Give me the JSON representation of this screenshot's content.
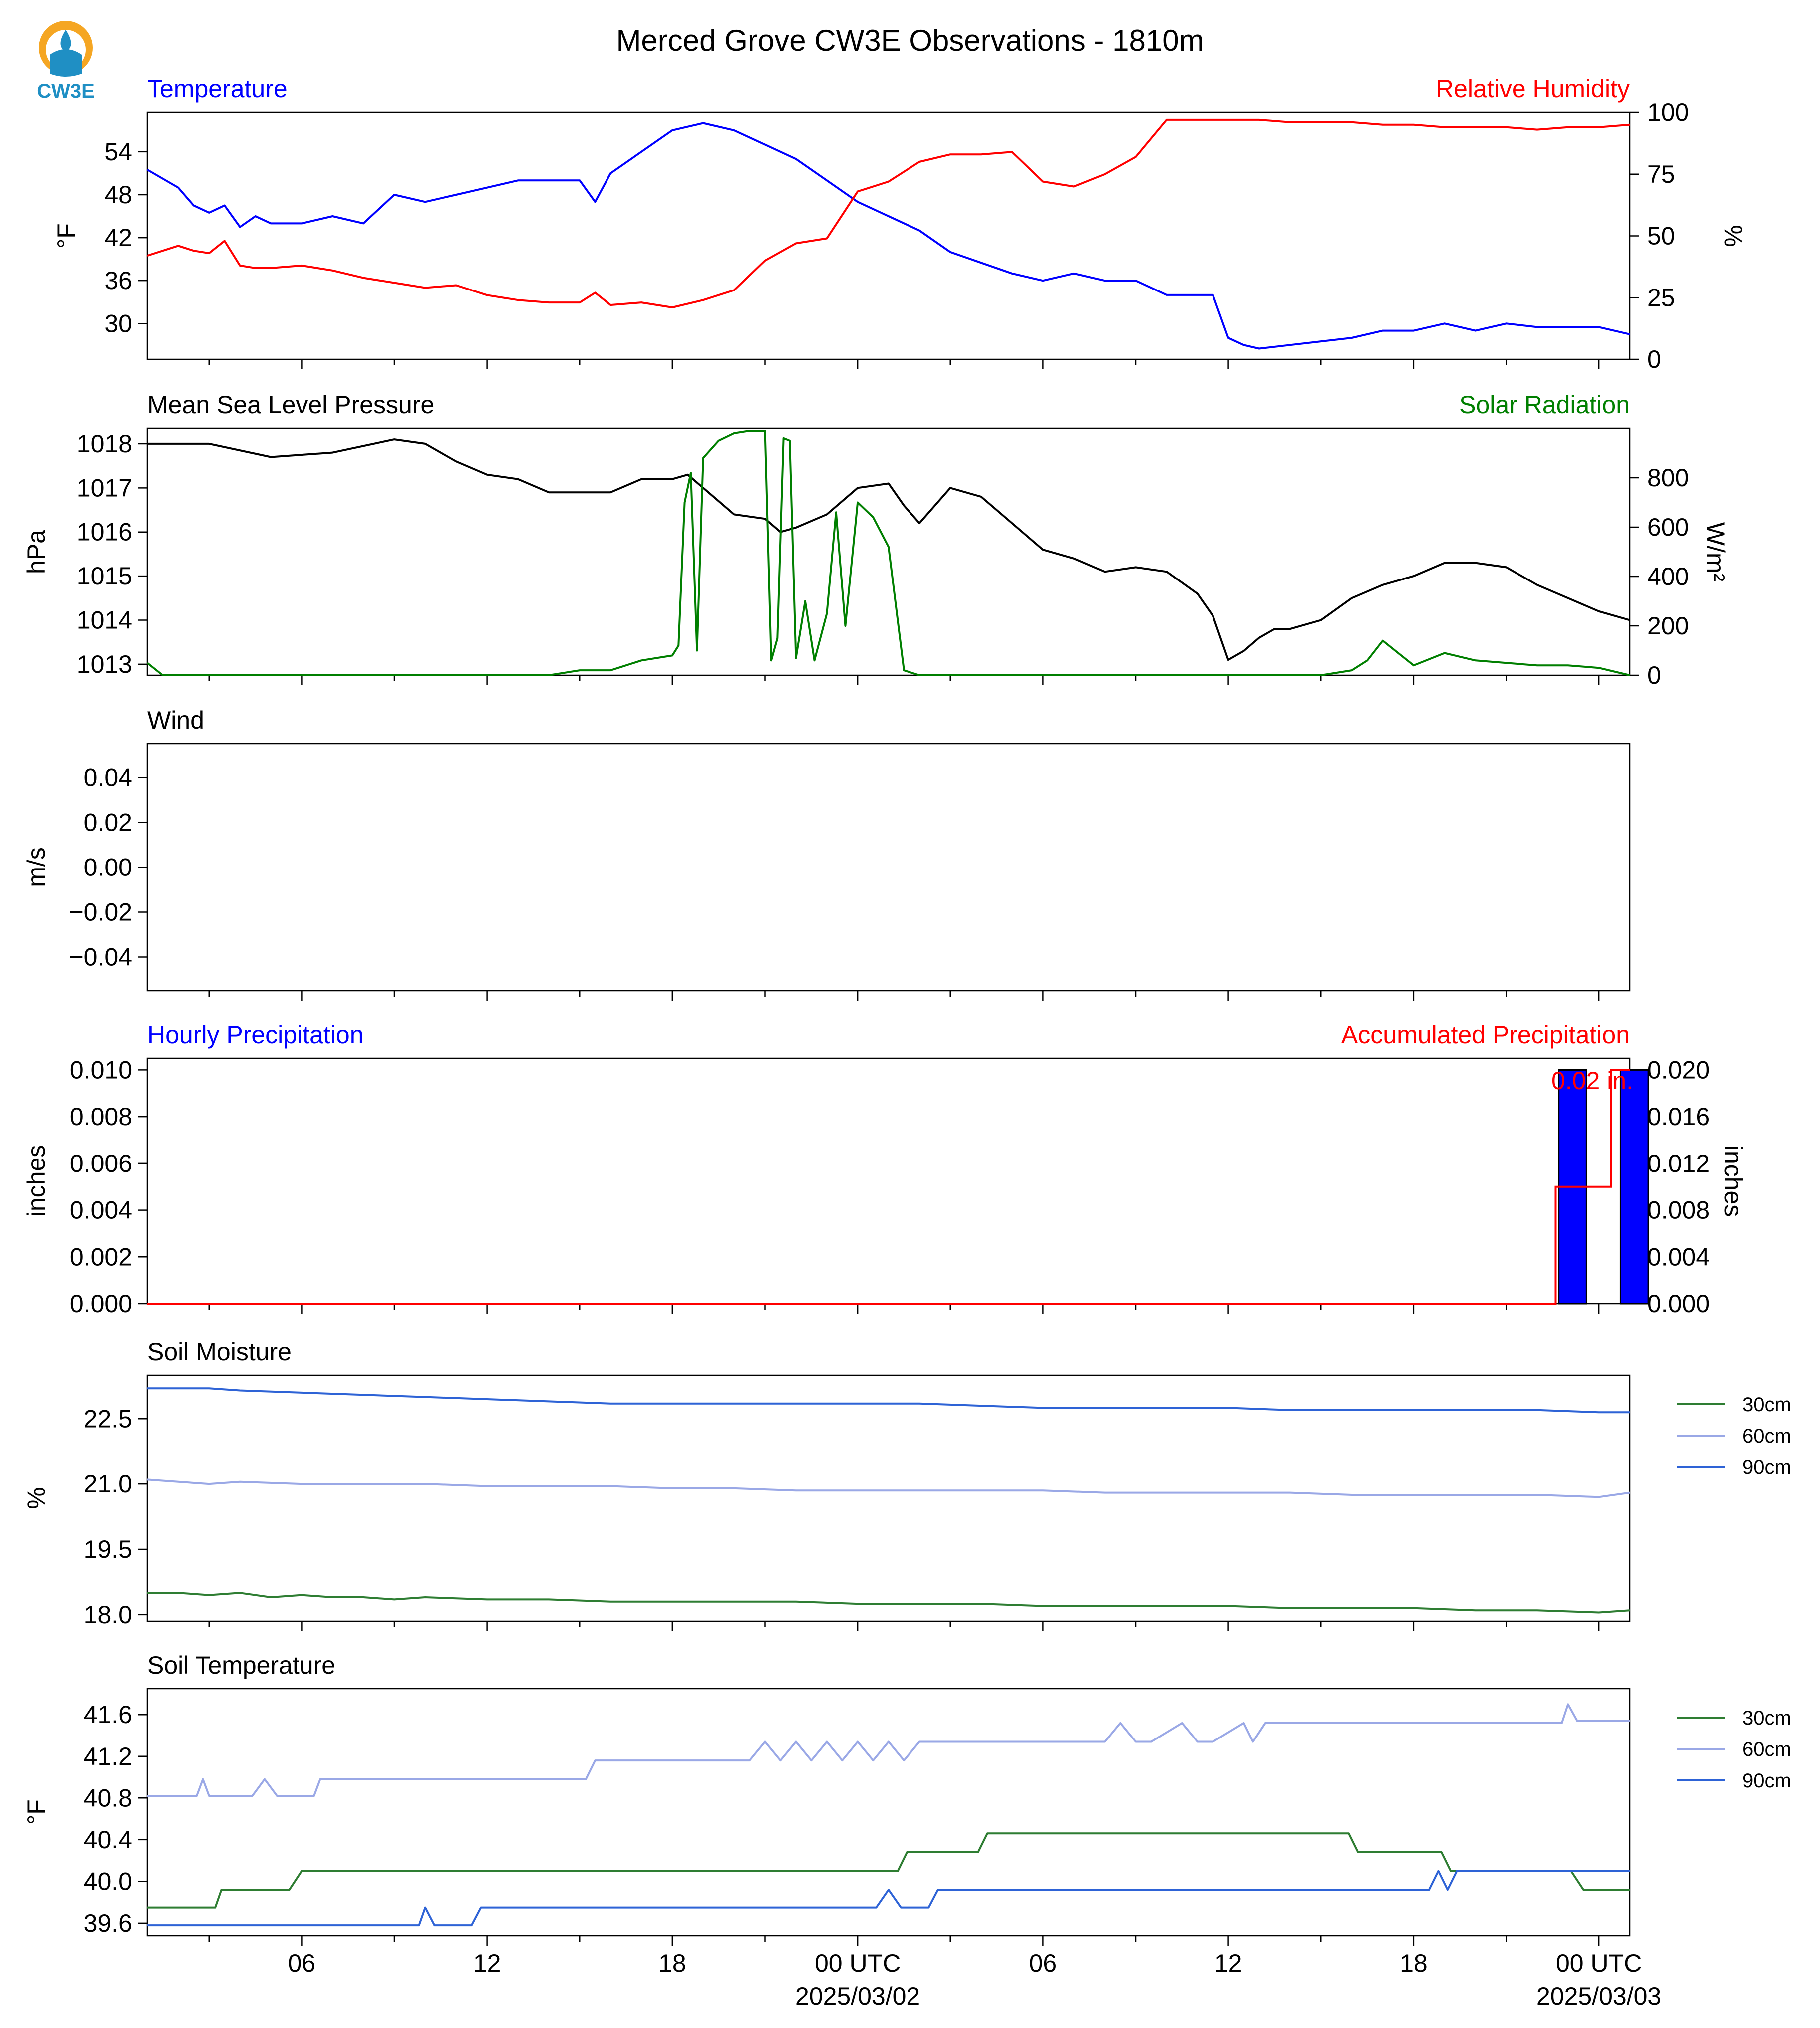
{
  "title": "Merced Grove CW3E Observations - 1810m",
  "logo": {
    "text": "CW3E",
    "colors": {
      "sun": "#f5a623",
      "water": "#1f8fc4"
    }
  },
  "x_axis": {
    "ticks": [
      "06",
      "12",
      "18",
      "00 UTC",
      "06",
      "12",
      "18",
      "00 UTC"
    ],
    "tick_hours": [
      6,
      12,
      18,
      24,
      30,
      36,
      42,
      48
    ],
    "dates": [
      "2025/03/02",
      "2025/03/03"
    ],
    "range_hours": [
      1,
      49
    ]
  },
  "chart_data": [
    {
      "type": "line",
      "title_left": "Temperature",
      "title_right": "Relative Humidity",
      "ylabel": "°F",
      "ylabel_right": "%",
      "yticks": [
        30,
        36,
        42,
        48,
        54
      ],
      "yticks_right": [
        0,
        25,
        50,
        75,
        100
      ],
      "ylim": [
        25,
        59.5
      ],
      "ylim_right": [
        0,
        100
      ],
      "colors": {
        "temperature": "#0000ff",
        "humidity": "#ff0000"
      },
      "series": [
        {
          "axis": "left",
          "color": "#0000ff",
          "x": [
            1,
            2,
            2.5,
            3,
            3.5,
            4,
            4.5,
            5,
            6,
            7,
            8,
            9,
            10,
            11,
            12,
            13,
            14,
            15,
            15.5,
            16,
            17,
            18,
            19,
            20,
            21,
            22,
            23,
            24,
            25,
            26,
            27,
            28,
            29,
            30,
            31,
            32,
            33,
            34,
            35,
            35.5,
            36,
            36.5,
            37,
            38,
            39,
            40,
            41,
            42,
            43,
            44,
            45,
            46,
            47,
            48,
            49
          ],
          "y": [
            51.5,
            49,
            46.5,
            45.5,
            46.5,
            43.5,
            45,
            44,
            44,
            45,
            44,
            48,
            47,
            48,
            49,
            50,
            50,
            50,
            47,
            51,
            54,
            57,
            58,
            57,
            55,
            53,
            50,
            47,
            45,
            43,
            40,
            38.5,
            37,
            36,
            37,
            36,
            36,
            34,
            34,
            34,
            28,
            27,
            26.5,
            27,
            27.5,
            28,
            29,
            29,
            30,
            29,
            30,
            29.5,
            29.5,
            29.5,
            28.5
          ]
        },
        {
          "axis": "right",
          "color": "#ff0000",
          "x": [
            1,
            2,
            2.5,
            3,
            3.5,
            4,
            4.5,
            5,
            6,
            7,
            8,
            9,
            10,
            11,
            12,
            13,
            14,
            15,
            15.5,
            16,
            17,
            18,
            19,
            20,
            21,
            22,
            23,
            24,
            25,
            26,
            27,
            28,
            29,
            30,
            31,
            32,
            33,
            34,
            35,
            36,
            37,
            38,
            39,
            40,
            41,
            42,
            43,
            44,
            45,
            46,
            47,
            48,
            49
          ],
          "y": [
            42,
            46,
            44,
            43,
            48,
            38,
            37,
            37,
            38,
            36,
            33,
            31,
            29,
            30,
            26,
            24,
            23,
            23,
            27,
            22,
            23,
            21,
            24,
            28,
            40,
            47,
            49,
            68,
            72,
            80,
            83,
            83,
            84,
            72,
            70,
            75,
            82,
            97,
            97,
            97,
            97,
            96,
            96,
            96,
            95,
            95,
            94,
            94,
            94,
            93,
            94,
            94,
            95
          ]
        }
      ]
    },
    {
      "type": "line",
      "title_left": "Mean Sea Level Pressure",
      "title_right": "Solar Radiation",
      "ylabel": "hPa",
      "ylabel_right": "W/m²",
      "yticks": [
        1013,
        1014,
        1015,
        1016,
        1017,
        1018
      ],
      "yticks_right": [
        0,
        200,
        400,
        600,
        800
      ],
      "ylim": [
        1012.75,
        1018.35
      ],
      "ylim_right": [
        0,
        1000
      ],
      "colors": {
        "pressure": "#000000",
        "solar": "#007f00"
      },
      "series": [
        {
          "axis": "left",
          "color": "#000000",
          "x": [
            1,
            3,
            5,
            7,
            9,
            10,
            11,
            12,
            13,
            14,
            15,
            16,
            17,
            18,
            18.5,
            19,
            19.5,
            20,
            21,
            21.5,
            22,
            23,
            24,
            25,
            25.5,
            26,
            27,
            28,
            29,
            30,
            31,
            32,
            33,
            34,
            35,
            35.5,
            36,
            36.5,
            37,
            37.5,
            38,
            39,
            40,
            41,
            42,
            43,
            44,
            45,
            46,
            47,
            48,
            49
          ],
          "y": [
            1018,
            1018,
            1017.7,
            1017.8,
            1018.1,
            1018,
            1017.6,
            1017.3,
            1017.2,
            1016.9,
            1016.9,
            1016.9,
            1017.2,
            1017.2,
            1017.3,
            1017,
            1016.7,
            1016.4,
            1016.3,
            1016,
            1016.1,
            1016.4,
            1017,
            1017.1,
            1016.6,
            1016.2,
            1017,
            1016.8,
            1016.2,
            1015.6,
            1015.4,
            1015.1,
            1015.2,
            1015.1,
            1014.6,
            1014.1,
            1013.1,
            1013.3,
            1013.6,
            1013.8,
            1013.8,
            1014.0,
            1014.5,
            1014.8,
            1015.0,
            1015.3,
            1015.3,
            1015.2,
            1014.8,
            1014.5,
            1014.2,
            1014.0
          ]
        },
        {
          "axis": "right",
          "color": "#007f00",
          "x": [
            1,
            1.5,
            2,
            14,
            15,
            16,
            17,
            18,
            18.2,
            18.4,
            18.6,
            18.8,
            19,
            19.5,
            20,
            20.5,
            21,
            21.2,
            21.4,
            21.6,
            21.8,
            22,
            22.3,
            22.6,
            23,
            23.3,
            23.6,
            24,
            24.5,
            25,
            25.5,
            26,
            30,
            35,
            37,
            38,
            39,
            40,
            40.5,
            41,
            42,
            43,
            44,
            45,
            46,
            47,
            48,
            49
          ],
          "y": [
            50,
            0,
            0,
            0,
            20,
            20,
            60,
            80,
            120,
            700,
            820,
            100,
            880,
            950,
            980,
            990,
            990,
            60,
            150,
            960,
            950,
            70,
            300,
            60,
            250,
            660,
            200,
            700,
            640,
            520,
            20,
            0,
            0,
            0,
            0,
            0,
            0,
            20,
            60,
            140,
            40,
            90,
            60,
            50,
            40,
            40,
            30,
            0
          ]
        }
      ]
    },
    {
      "type": "line",
      "title_left": "Wind",
      "ylabel": "m/s",
      "yticks": [
        -0.04,
        -0.02,
        0.0,
        0.02,
        0.04
      ],
      "ytick_labels": [
        "−0.04",
        "−0.02",
        "0.00",
        "0.02",
        "0.04"
      ],
      "ylim": [
        -0.055,
        0.055
      ],
      "series": []
    },
    {
      "type": "bar",
      "title_left": "Hourly Precipitation",
      "title_right": "Accumulated Precipitation",
      "ylabel": "inches",
      "ylabel_right": "inches",
      "yticks": [
        0.0,
        0.002,
        0.004,
        0.006,
        0.008,
        0.01
      ],
      "ytick_labels": [
        "0.000",
        "0.002",
        "0.004",
        "0.006",
        "0.008",
        "0.010"
      ],
      "yticks_right": [
        0.0,
        0.004,
        0.008,
        0.012,
        0.016,
        0.02
      ],
      "ytick_labels_right": [
        "0.000",
        "0.004",
        "0.008",
        "0.012",
        "0.016",
        "0.020"
      ],
      "ylim": [
        0,
        0.0105
      ],
      "ylim_right": [
        0,
        0.021
      ],
      "bars": {
        "color": "#0000ff",
        "x_start": [
          46,
          48
        ],
        "values": [
          0.01,
          0.01
        ]
      },
      "accumulated": {
        "color": "#ff0000",
        "x": [
          1,
          46.6,
          46.6,
          48.4,
          48.4,
          49
        ],
        "y": [
          0,
          0,
          0.01,
          0.01,
          0.02,
          0.02
        ]
      },
      "annotation": "0.02 in."
    },
    {
      "type": "line",
      "title_left": "Soil Moisture",
      "ylabel": "%",
      "yticks": [
        18.0,
        19.5,
        21.0,
        22.5
      ],
      "ytick_labels": [
        "18.0",
        "19.5",
        "21.0",
        "22.5"
      ],
      "ylim": [
        17.85,
        23.5
      ],
      "legend": "right",
      "series": [
        {
          "name": "30cm",
          "color": "#2e7d32",
          "x": [
            1,
            2,
            3,
            4,
            5,
            6,
            7,
            8,
            9,
            10,
            12,
            14,
            16,
            18,
            20,
            22,
            24,
            26,
            28,
            30,
            32,
            34,
            36,
            38,
            40,
            42,
            44,
            46,
            48,
            49
          ],
          "y": [
            18.5,
            18.5,
            18.45,
            18.5,
            18.4,
            18.45,
            18.4,
            18.4,
            18.35,
            18.4,
            18.35,
            18.35,
            18.3,
            18.3,
            18.3,
            18.3,
            18.25,
            18.25,
            18.25,
            18.2,
            18.2,
            18.2,
            18.2,
            18.15,
            18.15,
            18.15,
            18.1,
            18.1,
            18.05,
            18.1
          ]
        },
        {
          "name": "60cm",
          "color": "#9aa8e6",
          "x": [
            1,
            2,
            3,
            4,
            6,
            8,
            10,
            12,
            14,
            16,
            18,
            20,
            22,
            24,
            26,
            28,
            30,
            32,
            34,
            36,
            38,
            40,
            42,
            44,
            46,
            48,
            49
          ],
          "y": [
            21.1,
            21.05,
            21.0,
            21.05,
            21.0,
            21.0,
            21.0,
            20.95,
            20.95,
            20.95,
            20.9,
            20.9,
            20.85,
            20.85,
            20.85,
            20.85,
            20.85,
            20.8,
            20.8,
            20.8,
            20.8,
            20.75,
            20.75,
            20.75,
            20.75,
            20.7,
            20.8
          ]
        },
        {
          "name": "90cm",
          "color": "#2e63d6",
          "x": [
            1,
            2,
            3,
            4,
            6,
            8,
            10,
            12,
            14,
            16,
            18,
            20,
            22,
            24,
            26,
            28,
            30,
            32,
            34,
            36,
            38,
            40,
            42,
            44,
            46,
            48,
            49
          ],
          "y": [
            23.2,
            23.2,
            23.2,
            23.15,
            23.1,
            23.05,
            23.0,
            22.95,
            22.9,
            22.85,
            22.85,
            22.85,
            22.85,
            22.85,
            22.85,
            22.8,
            22.75,
            22.75,
            22.75,
            22.75,
            22.7,
            22.7,
            22.7,
            22.7,
            22.7,
            22.65,
            22.65
          ]
        }
      ]
    },
    {
      "type": "line",
      "title_left": "Soil Temperature",
      "ylabel": "°F",
      "yticks": [
        39.6,
        40.0,
        40.4,
        40.8,
        41.2,
        41.6
      ],
      "ytick_labels": [
        "39.6",
        "40.0",
        "40.4",
        "40.8",
        "41.2",
        "41.6"
      ],
      "ylim": [
        39.48,
        41.85
      ],
      "legend": "right",
      "series": [
        {
          "name": "30cm",
          "color": "#2e7d32",
          "x": [
            1,
            3.2,
            3.4,
            5.6,
            6,
            25.3,
            25.6,
            27.9,
            28.2,
            36.3,
            38.7,
            39.9,
            40.2,
            42.9,
            43.2,
            43.6,
            47.1,
            47.5,
            49
          ],
          "y": [
            39.75,
            39.75,
            39.92,
            39.92,
            40.1,
            40.1,
            40.28,
            40.28,
            40.46,
            40.46,
            40.46,
            40.46,
            40.28,
            40.28,
            40.1,
            40.1,
            40.1,
            39.92,
            39.92
          ]
        },
        {
          "name": "60cm",
          "color": "#9aa8e6",
          "x": [
            1,
            2.6,
            2.8,
            3,
            4.4,
            4.8,
            5.2,
            6.4,
            6.6,
            15.2,
            15.5,
            15.8,
            20.5,
            21,
            21.5,
            22,
            22.5,
            23,
            23.5,
            24,
            24.5,
            25,
            25.5,
            26,
            26.5,
            27,
            32,
            32.5,
            33,
            33.5,
            34.5,
            35,
            35.5,
            36.5,
            36.8,
            37.2,
            37.6,
            46.8,
            47,
            47.3,
            49
          ],
          "y": [
            40.82,
            40.82,
            40.98,
            40.82,
            40.82,
            40.98,
            40.82,
            40.82,
            40.98,
            40.98,
            41.16,
            41.16,
            41.16,
            41.34,
            41.16,
            41.34,
            41.16,
            41.34,
            41.16,
            41.34,
            41.16,
            41.34,
            41.16,
            41.34,
            41.34,
            41.34,
            41.34,
            41.52,
            41.34,
            41.34,
            41.52,
            41.34,
            41.34,
            41.52,
            41.34,
            41.52,
            41.52,
            41.52,
            41.7,
            41.54,
            41.54
          ]
        },
        {
          "name": "90cm",
          "color": "#2e63d6",
          "x": [
            1,
            9.8,
            10,
            10.3,
            11.5,
            11.8,
            24.6,
            25,
            25.4,
            26.3,
            26.6,
            26.9,
            27.2,
            42.5,
            42.8,
            43.1,
            43.4,
            43.8,
            49
          ],
          "y": [
            39.58,
            39.58,
            39.75,
            39.58,
            39.58,
            39.75,
            39.75,
            39.92,
            39.75,
            39.75,
            39.92,
            39.92,
            39.92,
            39.92,
            40.1,
            39.92,
            40.1,
            40.1,
            40.1
          ]
        }
      ]
    }
  ]
}
